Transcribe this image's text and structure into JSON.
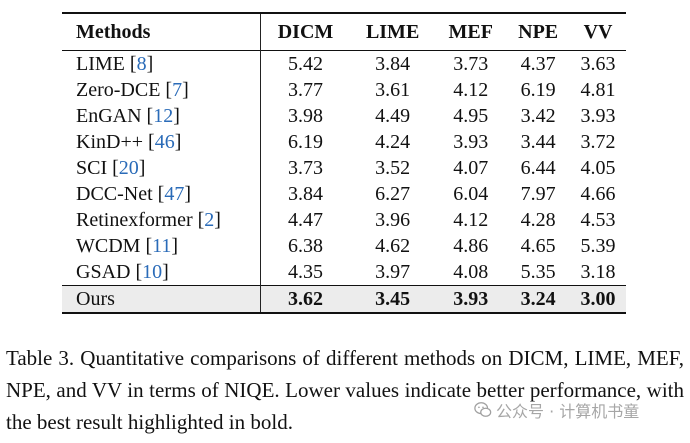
{
  "table": {
    "headers": [
      "Methods",
      "DICM",
      "LIME",
      "MEF",
      "NPE",
      "VV"
    ],
    "rows": [
      {
        "name": "LIME",
        "cite": "8",
        "values": [
          "5.42",
          "3.84",
          "3.73",
          "4.37",
          "3.63"
        ]
      },
      {
        "name": "Zero-DCE",
        "cite": "7",
        "values": [
          "3.77",
          "3.61",
          "4.12",
          "6.19",
          "4.81"
        ]
      },
      {
        "name": "EnGAN",
        "cite": "12",
        "values": [
          "3.98",
          "4.49",
          "4.95",
          "3.42",
          "3.93"
        ]
      },
      {
        "name": "KinD++",
        "cite": "46",
        "values": [
          "6.19",
          "4.24",
          "3.93",
          "3.44",
          "3.72"
        ]
      },
      {
        "name": "SCI",
        "cite": "20",
        "values": [
          "3.73",
          "3.52",
          "4.07",
          "6.44",
          "4.05"
        ]
      },
      {
        "name": "DCC-Net",
        "cite": "47",
        "values": [
          "3.84",
          "6.27",
          "6.04",
          "7.97",
          "4.66"
        ]
      },
      {
        "name": "Retinexformer",
        "cite": "2",
        "values": [
          "4.47",
          "3.96",
          "4.12",
          "4.28",
          "4.53"
        ]
      },
      {
        "name": "WCDM",
        "cite": "11",
        "values": [
          "6.38",
          "4.62",
          "4.86",
          "4.65",
          "5.39"
        ]
      },
      {
        "name": "GSAD",
        "cite": "10",
        "values": [
          "4.35",
          "3.97",
          "4.08",
          "5.35",
          "3.18"
        ]
      }
    ],
    "ours": {
      "name": "Ours",
      "values": [
        "3.62",
        "3.45",
        "3.93",
        "3.24",
        "3.00"
      ]
    }
  },
  "caption": "Table 3. Quantitative comparisons of different methods on DICM, LIME, MEF, NPE, and VV in terms of NIQE. Lower values indicate better performance, with the best result highlighted in bold.",
  "watermark": {
    "text": "公众号 · 计算机书童",
    "icon": "wechat-icon"
  },
  "colors": {
    "citation": "#2a6bb8",
    "highlight_row": "#ececec"
  }
}
